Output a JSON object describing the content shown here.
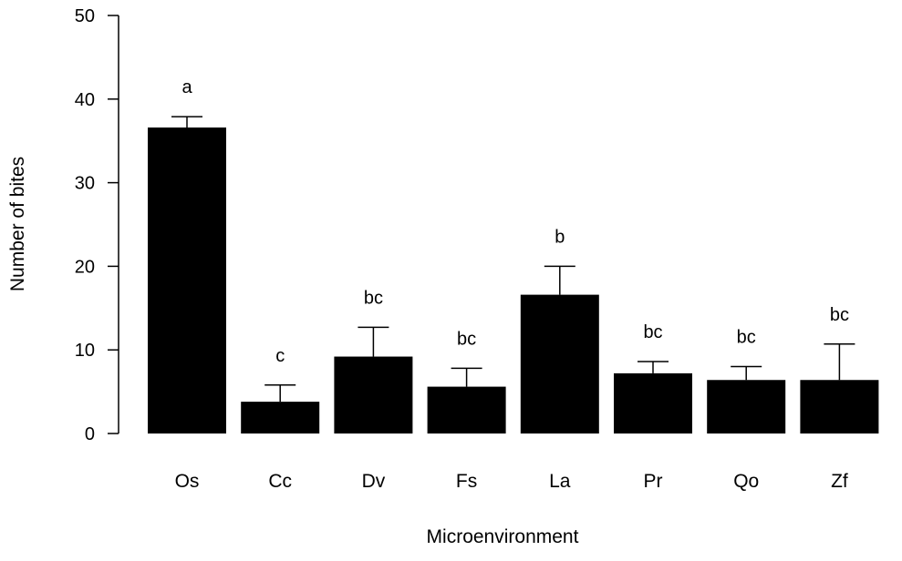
{
  "chart_data": {
    "type": "bar",
    "title": "",
    "xlabel": "Microenvironment",
    "ylabel": "Number of bites",
    "ylim": [
      0,
      50
    ],
    "yticks": [
      0,
      10,
      20,
      30,
      40,
      50
    ],
    "grid": false,
    "categories": [
      "Os",
      "Cc",
      "Dv",
      "Fs",
      "La",
      "Pr",
      "Qo",
      "Zf"
    ],
    "values": [
      36.6,
      3.8,
      9.2,
      5.6,
      16.6,
      7.2,
      6.4,
      6.4
    ],
    "error_upper": [
      1.3,
      2.0,
      3.5,
      2.2,
      3.4,
      1.4,
      1.6,
      4.3
    ],
    "significance_letters": [
      "a",
      "c",
      "bc",
      "bc",
      "b",
      "bc",
      "bc",
      "bc"
    ],
    "bar_color": "#000000"
  }
}
